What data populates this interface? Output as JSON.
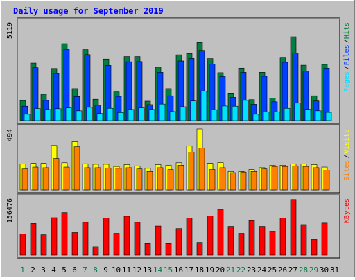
{
  "chart_data": {
    "type": "bar",
    "title": "Daily usage for September 2019",
    "x": [
      "1",
      "2",
      "3",
      "4",
      "5",
      "6",
      "7",
      "8",
      "9",
      "10",
      "11",
      "12",
      "13",
      "14",
      "15",
      "16",
      "17",
      "18",
      "19",
      "20",
      "21",
      "22",
      "23",
      "24",
      "25",
      "26",
      "27",
      "28",
      "29",
      "30",
      "31"
    ],
    "weekend_days": [
      "1",
      "7",
      "8",
      "14",
      "15",
      "21",
      "22",
      "28",
      "29"
    ],
    "panels": [
      {
        "name": "hits-files-pages",
        "max_label": "5119",
        "ymax": 5119,
        "legend": [
          "Pages",
          "Files",
          "Hits"
        ],
        "legend_colors": [
          "#00e0ff",
          "#0040ff",
          "#008040"
        ],
        "series": [
          {
            "name": "Hits",
            "color": "#008040",
            "values": [
              1040,
              2990,
              1370,
              2710,
              4000,
              1660,
              3690,
              1110,
              3200,
              1490,
              3330,
              3330,
              1010,
              2780,
              1660,
              3420,
              3490,
              4060,
              3220,
              2490,
              1430,
              2730,
              1090,
              2510,
              1170,
              3290,
              4360,
              2880,
              1290,
              2920,
              0
            ]
          },
          {
            "name": "Files",
            "color": "#0040ff",
            "values": [
              750,
              2750,
              1050,
              2450,
              3710,
              1250,
              3430,
              800,
              2870,
              1260,
              3060,
              3070,
              830,
              2510,
              1290,
              3100,
              3230,
              3650,
              2930,
              2290,
              1210,
              2510,
              850,
              2310,
              980,
              3030,
              3510,
              2570,
              1020,
              2730,
              0
            ]
          },
          {
            "name": "Pages",
            "color": "#00e0ff",
            "values": [
              330,
              630,
              580,
              620,
              660,
              510,
              690,
              370,
              640,
              420,
              580,
              660,
              580,
              860,
              470,
              720,
              1020,
              1540,
              570,
              760,
              750,
              1050,
              330,
              460,
              460,
              640,
              910,
              590,
              510,
              430,
              0
            ]
          }
        ]
      },
      {
        "name": "visits-sites",
        "max_label": "494",
        "ymax": 494,
        "legend": [
          "Sites",
          "Visits"
        ],
        "legend_colors": [
          "#ff8000",
          "#ffff00"
        ],
        "series": [
          {
            "name": "Visits",
            "color": "#ffff00",
            "values": [
              210,
              215,
              215,
              360,
              220,
              390,
              212,
              208,
              208,
              190,
              205,
              195,
              175,
              205,
              200,
              220,
              355,
              494,
              215,
              222,
              150,
              150,
              165,
              180,
              200,
              200,
              210,
              210,
              205,
              185,
              0
            ]
          },
          {
            "name": "Sites",
            "color": "#ff8000",
            "values": [
              170,
              185,
              180,
              255,
              185,
              350,
              180,
              180,
              178,
              175,
              180,
              170,
              150,
              180,
              165,
              200,
              305,
              340,
              165,
              180,
              140,
              145,
              150,
              170,
              190,
              190,
              195,
              190,
              180,
              160,
              0
            ]
          }
        ]
      },
      {
        "name": "kbytes",
        "max_label": "156476",
        "ymax": 156476,
        "legend": [
          "KBytes"
        ],
        "legend_colors": [
          "#ff0000"
        ],
        "series": [
          {
            "name": "KBytes",
            "color": "#ff0000",
            "values": [
              58000,
              87000,
              56000,
              103000,
              117000,
              62000,
              90000,
              23000,
              102000,
              60000,
              107000,
              90000,
              32000,
              80000,
              32000,
              73000,
              102000,
              35000,
              108000,
              126000,
              79000,
              60000,
              95000,
              79000,
              65000,
              102000,
              153000,
              84000,
              43000,
              88000,
              0
            ]
          }
        ]
      }
    ]
  }
}
